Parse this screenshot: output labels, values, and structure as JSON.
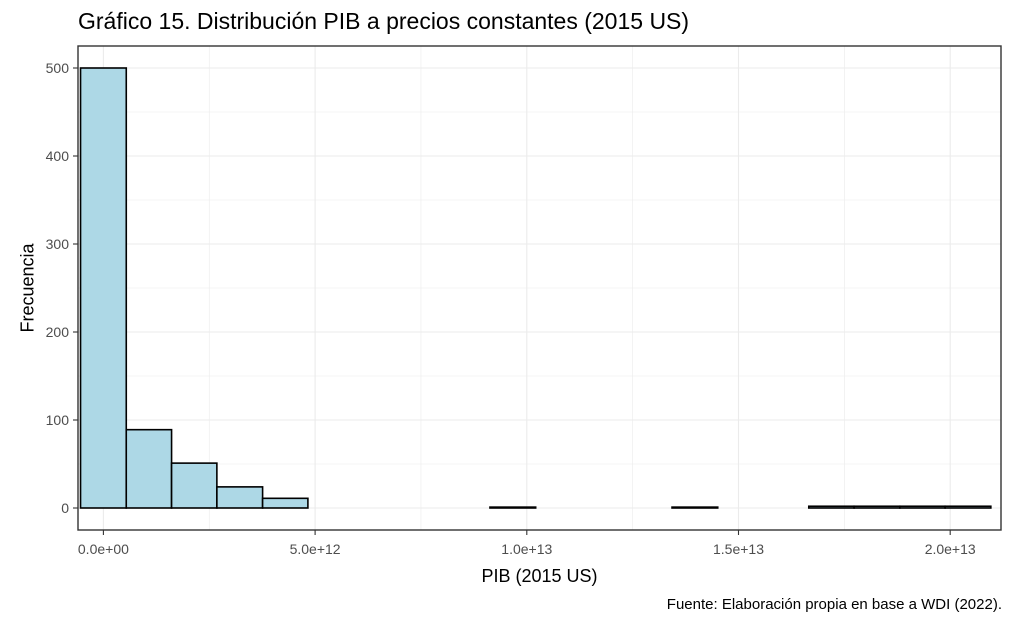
{
  "title": "Gráfico 15. Distribución PIB a precios constantes (2015 US)",
  "caption": "Fuente: Elaboración propia en base a WDI (2022).",
  "chart_data": {
    "type": "bar",
    "subtype": "histogram",
    "title": "Gráfico 15. Distribución PIB a precios constantes (2015 US)",
    "xlabel": "PIB (2015 US)",
    "ylabel": "Frecuencia",
    "xlim": [
      -600000000000.0,
      21200000000000.0
    ],
    "ylim": [
      -25,
      525
    ],
    "x_ticks": [
      0,
      5000000000000.0,
      10000000000000.0,
      15000000000000.0,
      20000000000000.0
    ],
    "x_tick_labels": [
      "0.0e+00",
      "5.0e+12",
      "1.0e+13",
      "1.5e+13",
      "2.0e+13"
    ],
    "y_ticks": [
      0,
      100,
      200,
      300,
      400,
      500
    ],
    "y_tick_labels": [
      "0",
      "100",
      "200",
      "300",
      "400",
      "500"
    ],
    "bins": [
      {
        "x0": -540000000000.0,
        "x1": 540000000000.0,
        "count": 500
      },
      {
        "x0": 540000000000.0,
        "x1": 1610000000000.0,
        "count": 89
      },
      {
        "x0": 1610000000000.0,
        "x1": 2680000000000.0,
        "count": 51
      },
      {
        "x0": 2680000000000.0,
        "x1": 3760000000000.0,
        "count": 24
      },
      {
        "x0": 3760000000000.0,
        "x1": 4830000000000.0,
        "count": 11
      },
      {
        "x0": 4830000000000.0,
        "x1": 5910000000000.0,
        "count": 0
      },
      {
        "x0": 5910000000000.0,
        "x1": 6980000000000.0,
        "count": 0
      },
      {
        "x0": 6980000000000.0,
        "x1": 8060000000000.0,
        "count": 0
      },
      {
        "x0": 8060000000000.0,
        "x1": 9130000000000.0,
        "count": 0
      },
      {
        "x0": 9130000000000.0,
        "x1": 10210000000000.0,
        "count": 1
      },
      {
        "x0": 10210000000000.0,
        "x1": 11280000000000.0,
        "count": 0
      },
      {
        "x0": 11280000000000.0,
        "x1": 12360000000000.0,
        "count": 0
      },
      {
        "x0": 12360000000000.0,
        "x1": 13430000000000.0,
        "count": 0
      },
      {
        "x0": 13430000000000.0,
        "x1": 14510000000000.0,
        "count": 1
      },
      {
        "x0": 14510000000000.0,
        "x1": 15580000000000.0,
        "count": 0
      },
      {
        "x0": 15580000000000.0,
        "x1": 16660000000000.0,
        "count": 0
      },
      {
        "x0": 16660000000000.0,
        "x1": 17730000000000.0,
        "count": 2
      },
      {
        "x0": 17730000000000.0,
        "x1": 18810000000000.0,
        "count": 2
      },
      {
        "x0": 18810000000000.0,
        "x1": 19880000000000.0,
        "count": 2
      },
      {
        "x0": 19880000000000.0,
        "x1": 20960000000000.0,
        "count": 2
      }
    ],
    "fill_color": "#add8e6",
    "edge_color": "#000000",
    "grid": true,
    "grid_color": "#ebebeb",
    "legend": "none"
  }
}
